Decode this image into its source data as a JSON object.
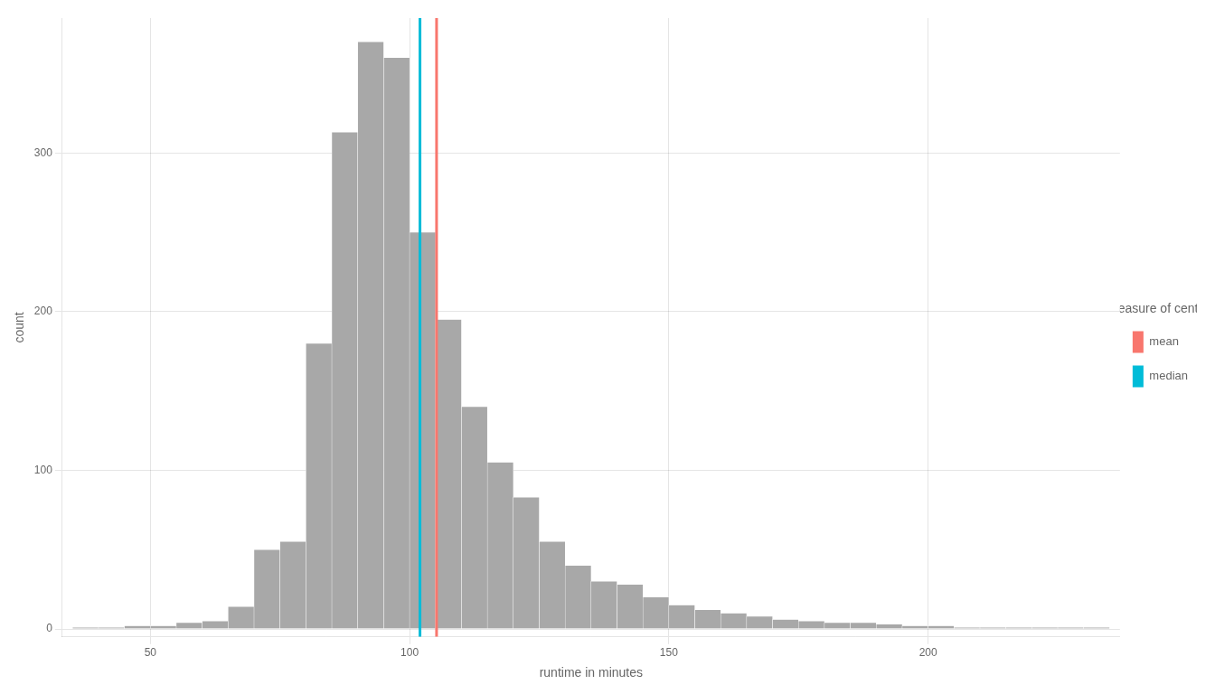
{
  "chart_data": {
    "type": "histogram",
    "xlabel": "runtime in minutes",
    "ylabel": "count",
    "bins": [
      35,
      40,
      45,
      50,
      55,
      60,
      65,
      70,
      75,
      80,
      85,
      90,
      95,
      100,
      105,
      110,
      115,
      120,
      125,
      130,
      135,
      140,
      145,
      150,
      155,
      160,
      165,
      170,
      175,
      180,
      185,
      190,
      195,
      200,
      205,
      210,
      215,
      220,
      225,
      230,
      235
    ],
    "values": [
      1,
      1,
      2,
      2,
      4,
      5,
      14,
      50,
      55,
      180,
      313,
      370,
      360,
      250,
      195,
      140,
      105,
      83,
      55,
      40,
      30,
      28,
      20,
      15,
      12,
      10,
      8,
      6,
      5,
      4,
      4,
      3,
      2,
      2,
      1,
      1,
      1,
      1,
      1,
      1
    ],
    "color": "#a8a8a8",
    "series": [
      {
        "name": "mean",
        "type": "vline",
        "x": 105.2,
        "color": "#F8766D"
      },
      {
        "name": "median",
        "type": "vline",
        "x": 102.0,
        "color": "#00BCD8"
      }
    ],
    "legend_title": "measure of center",
    "legend": "right",
    "xlim": [
      33,
      237
    ],
    "ylim": [
      -5,
      385
    ],
    "xticks": [
      50,
      100,
      150,
      200
    ],
    "yticks": [
      0,
      100,
      200,
      300
    ],
    "grid": true
  }
}
